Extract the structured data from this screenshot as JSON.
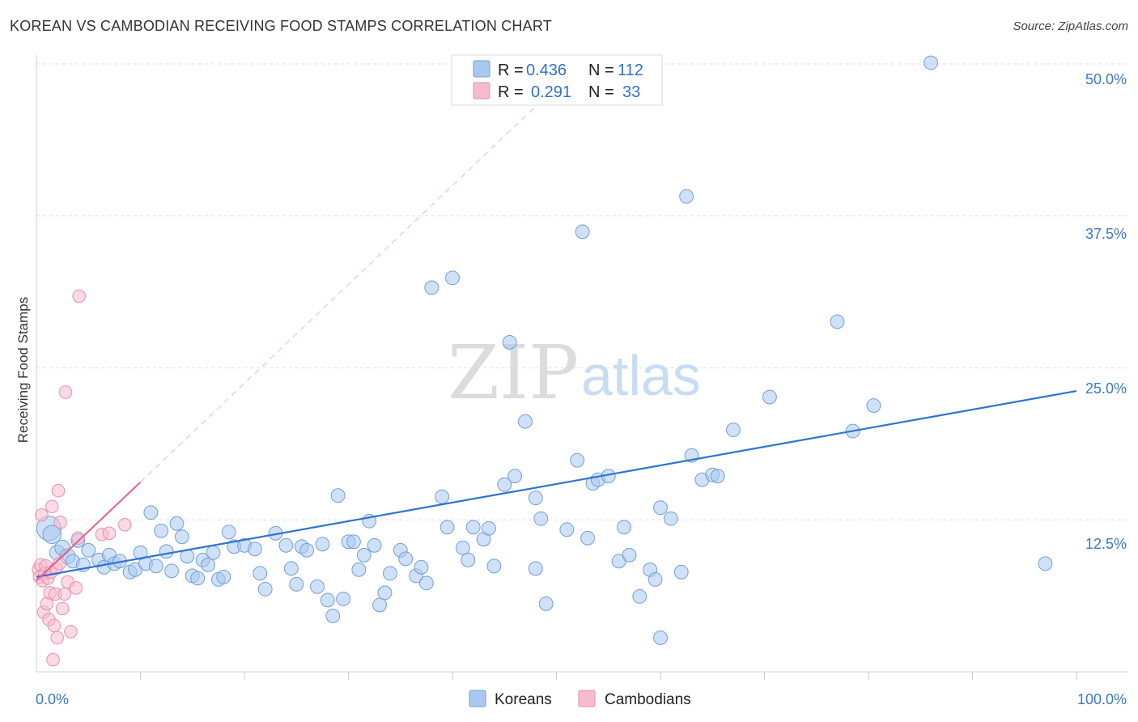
{
  "title": "KOREAN VS CAMBODIAN RECEIVING FOOD STAMPS CORRELATION CHART",
  "source": "Source: ZipAtlas.com",
  "watermark": {
    "zip": "ZIP",
    "atlas": "atlas"
  },
  "colors": {
    "korean_fill": "#a9c8f0",
    "korean_stroke": "#6f9fdc",
    "korean_line": "#2e74d0",
    "cambodian_fill": "#f6bccd",
    "cambodian_stroke": "#ea8fa9",
    "cambodian_line": "#e85f8a",
    "grid": "#dedede",
    "tick_text": "#3a78c9"
  },
  "legend": {
    "rows": [
      {
        "r_label": "R =",
        "r_value": "0.436",
        "n_label": "N =",
        "n_value": "112"
      },
      {
        "r_label": "R =",
        "r_value": "0.291",
        "n_label": "N =",
        "n_value": "33"
      }
    ]
  },
  "bottom_legend": {
    "korean": "Koreans",
    "cambodian": "Cambodians"
  },
  "chart_data": {
    "type": "scatter",
    "title": "KOREAN VS CAMBODIAN RECEIVING FOOD STAMPS CORRELATION CHART",
    "xlabel": "",
    "ylabel": "Receiving Food Stamps",
    "xlim": [
      0,
      100
    ],
    "ylim": [
      0,
      52
    ],
    "x_tick_labels": [
      {
        "value": 0,
        "label": "0.0%"
      },
      {
        "value": 100,
        "label": "100.0%"
      }
    ],
    "y_tick_labels": [
      {
        "value": 12.5,
        "label": "12.5%"
      },
      {
        "value": 25,
        "label": "25.0%"
      },
      {
        "value": 37.5,
        "label": "37.5%"
      },
      {
        "value": 50,
        "label": "50.0%"
      }
    ],
    "grid": true,
    "series": [
      {
        "name": "Koreans",
        "r": 0.436,
        "n": 112,
        "trend": {
          "x": [
            0,
            100
          ],
          "y": [
            7.8,
            23.1
          ]
        },
        "points": [
          {
            "x": 1.2,
            "y": 11.8,
            "size": 16
          },
          {
            "x": 1.5,
            "y": 11.3,
            "size": 12
          },
          {
            "x": 2,
            "y": 9.8,
            "size": 10
          },
          {
            "x": 2.5,
            "y": 10.2,
            "size": 10
          },
          {
            "x": 3,
            "y": 9.5,
            "size": 10
          },
          {
            "x": 3.5,
            "y": 9.1,
            "size": 9
          },
          {
            "x": 4,
            "y": 10.8,
            "size": 9
          },
          {
            "x": 4.5,
            "y": 8.8,
            "size": 9
          },
          {
            "x": 5,
            "y": 10,
            "size": 9
          },
          {
            "x": 6,
            "y": 9.2,
            "size": 9
          },
          {
            "x": 6.5,
            "y": 8.6,
            "size": 9
          },
          {
            "x": 7,
            "y": 9.6,
            "size": 9
          },
          {
            "x": 7.5,
            "y": 8.9,
            "size": 9
          },
          {
            "x": 8,
            "y": 9.1,
            "size": 9
          },
          {
            "x": 9,
            "y": 8.2,
            "size": 9
          },
          {
            "x": 9.5,
            "y": 8.4,
            "size": 9
          },
          {
            "x": 10,
            "y": 9.8,
            "size": 9
          },
          {
            "x": 10.5,
            "y": 8.9,
            "size": 9
          },
          {
            "x": 11,
            "y": 13.1,
            "size": 9
          },
          {
            "x": 11.5,
            "y": 8.7,
            "size": 9
          },
          {
            "x": 12,
            "y": 11.6,
            "size": 9
          },
          {
            "x": 12.5,
            "y": 9.9,
            "size": 9
          },
          {
            "x": 13,
            "y": 8.3,
            "size": 9
          },
          {
            "x": 13.5,
            "y": 12.2,
            "size": 9
          },
          {
            "x": 14,
            "y": 11.1,
            "size": 9
          },
          {
            "x": 14.5,
            "y": 9.5,
            "size": 9
          },
          {
            "x": 15,
            "y": 7.9,
            "size": 9
          },
          {
            "x": 15.5,
            "y": 7.7,
            "size": 9
          },
          {
            "x": 16,
            "y": 9.2,
            "size": 9
          },
          {
            "x": 16.5,
            "y": 8.8,
            "size": 9
          },
          {
            "x": 17,
            "y": 9.8,
            "size": 9
          },
          {
            "x": 17.5,
            "y": 7.6,
            "size": 9
          },
          {
            "x": 18,
            "y": 7.8,
            "size": 9
          },
          {
            "x": 18.5,
            "y": 11.5,
            "size": 9
          },
          {
            "x": 19,
            "y": 10.3,
            "size": 9
          },
          {
            "x": 20,
            "y": 10.4,
            "size": 9
          },
          {
            "x": 21,
            "y": 10.1,
            "size": 9
          },
          {
            "x": 21.5,
            "y": 8.1,
            "size": 9
          },
          {
            "x": 22,
            "y": 6.8,
            "size": 9
          },
          {
            "x": 23,
            "y": 11.4,
            "size": 9
          },
          {
            "x": 24,
            "y": 10.4,
            "size": 9
          },
          {
            "x": 24.5,
            "y": 8.5,
            "size": 9
          },
          {
            "x": 25,
            "y": 7.2,
            "size": 9
          },
          {
            "x": 25.5,
            "y": 10.3,
            "size": 9
          },
          {
            "x": 26,
            "y": 10,
            "size": 9
          },
          {
            "x": 27,
            "y": 7,
            "size": 9
          },
          {
            "x": 27.5,
            "y": 10.5,
            "size": 9
          },
          {
            "x": 28,
            "y": 5.9,
            "size": 9
          },
          {
            "x": 28.5,
            "y": 4.6,
            "size": 9
          },
          {
            "x": 29,
            "y": 14.5,
            "size": 9
          },
          {
            "x": 29.5,
            "y": 6,
            "size": 9
          },
          {
            "x": 30,
            "y": 10.7,
            "size": 9
          },
          {
            "x": 30.5,
            "y": 10.7,
            "size": 9
          },
          {
            "x": 31,
            "y": 8.4,
            "size": 9
          },
          {
            "x": 31.5,
            "y": 9.6,
            "size": 9
          },
          {
            "x": 32,
            "y": 12.4,
            "size": 9
          },
          {
            "x": 32.5,
            "y": 10.4,
            "size": 9
          },
          {
            "x": 33,
            "y": 5.5,
            "size": 9
          },
          {
            "x": 33.5,
            "y": 6.5,
            "size": 9
          },
          {
            "x": 34,
            "y": 8.1,
            "size": 9
          },
          {
            "x": 35,
            "y": 10,
            "size": 9
          },
          {
            "x": 35.5,
            "y": 9.3,
            "size": 9
          },
          {
            "x": 36.5,
            "y": 7.9,
            "size": 9
          },
          {
            "x": 37,
            "y": 8.6,
            "size": 9
          },
          {
            "x": 37.5,
            "y": 7.3,
            "size": 9
          },
          {
            "x": 38,
            "y": 31.6,
            "size": 9
          },
          {
            "x": 39,
            "y": 14.4,
            "size": 9
          },
          {
            "x": 39.5,
            "y": 11.9,
            "size": 9
          },
          {
            "x": 40,
            "y": 32.4,
            "size": 9
          },
          {
            "x": 41,
            "y": 10.2,
            "size": 9
          },
          {
            "x": 41.5,
            "y": 9.2,
            "size": 9
          },
          {
            "x": 42,
            "y": 11.9,
            "size": 9
          },
          {
            "x": 43,
            "y": 10.9,
            "size": 9
          },
          {
            "x": 43.5,
            "y": 11.8,
            "size": 9
          },
          {
            "x": 44,
            "y": 8.7,
            "size": 9
          },
          {
            "x": 45,
            "y": 15.4,
            "size": 9
          },
          {
            "x": 45.5,
            "y": 27.1,
            "size": 9
          },
          {
            "x": 46,
            "y": 16.1,
            "size": 9
          },
          {
            "x": 47,
            "y": 20.6,
            "size": 9
          },
          {
            "x": 48,
            "y": 8.5,
            "size": 9
          },
          {
            "x": 48.5,
            "y": 12.6,
            "size": 9
          },
          {
            "x": 49,
            "y": 5.6,
            "size": 9
          },
          {
            "x": 51,
            "y": 11.7,
            "size": 9
          },
          {
            "x": 52,
            "y": 17.4,
            "size": 9
          },
          {
            "x": 52.5,
            "y": 36.2,
            "size": 9
          },
          {
            "x": 53,
            "y": 11,
            "size": 9
          },
          {
            "x": 53.5,
            "y": 15.5,
            "size": 9
          },
          {
            "x": 54,
            "y": 15.8,
            "size": 9
          },
          {
            "x": 55,
            "y": 16.1,
            "size": 9
          },
          {
            "x": 56,
            "y": 9.1,
            "size": 9
          },
          {
            "x": 56.5,
            "y": 11.9,
            "size": 9
          },
          {
            "x": 57,
            "y": 9.6,
            "size": 9
          },
          {
            "x": 58,
            "y": 6.2,
            "size": 9
          },
          {
            "x": 59,
            "y": 8.4,
            "size": 9
          },
          {
            "x": 59.5,
            "y": 7.6,
            "size": 9
          },
          {
            "x": 60,
            "y": 13.5,
            "size": 9
          },
          {
            "x": 60,
            "y": 2.8,
            "size": 9
          },
          {
            "x": 61,
            "y": 12.6,
            "size": 9
          },
          {
            "x": 62,
            "y": 8.2,
            "size": 9
          },
          {
            "x": 62.5,
            "y": 39.1,
            "size": 9
          },
          {
            "x": 63,
            "y": 17.8,
            "size": 9
          },
          {
            "x": 64,
            "y": 15.8,
            "size": 9
          },
          {
            "x": 65,
            "y": 16.2,
            "size": 9
          },
          {
            "x": 65.5,
            "y": 16.1,
            "size": 9
          },
          {
            "x": 67,
            "y": 19.9,
            "size": 9
          },
          {
            "x": 70.5,
            "y": 22.6,
            "size": 9
          },
          {
            "x": 77,
            "y": 28.8,
            "size": 9
          },
          {
            "x": 78.5,
            "y": 19.8,
            "size": 9
          },
          {
            "x": 80.5,
            "y": 21.9,
            "size": 9
          },
          {
            "x": 86,
            "y": 50.1,
            "size": 9
          },
          {
            "x": 97,
            "y": 8.9,
            "size": 9
          },
          {
            "x": 48,
            "y": 14.3,
            "size": 9
          }
        ]
      },
      {
        "name": "Cambodians",
        "r": 0.291,
        "n": 33,
        "trend": {
          "x": [
            0,
            10
          ],
          "y": [
            7.5,
            15.6
          ],
          "extended": {
            "x": [
              10,
              48
            ],
            "y": [
              15.6,
              46.5
            ]
          }
        },
        "points": [
          {
            "x": 0.2,
            "y": 8.4,
            "size": 9
          },
          {
            "x": 0.3,
            "y": 7.8,
            "size": 9
          },
          {
            "x": 0.4,
            "y": 8.8,
            "size": 9
          },
          {
            "x": 0.5,
            "y": 12.9,
            "size": 9
          },
          {
            "x": 0.6,
            "y": 7.5,
            "size": 9
          },
          {
            "x": 0.7,
            "y": 4.9,
            "size": 9
          },
          {
            "x": 0.8,
            "y": 8.1,
            "size": 9
          },
          {
            "x": 0.9,
            "y": 8.7,
            "size": 9
          },
          {
            "x": 1,
            "y": 5.6,
            "size": 9
          },
          {
            "x": 1.1,
            "y": 7.7,
            "size": 9
          },
          {
            "x": 1.2,
            "y": 4.3,
            "size": 9
          },
          {
            "x": 1.3,
            "y": 6.5,
            "size": 9
          },
          {
            "x": 1.4,
            "y": 8.2,
            "size": 9
          },
          {
            "x": 1.5,
            "y": 13.6,
            "size": 9
          },
          {
            "x": 1.6,
            "y": 1,
            "size": 9
          },
          {
            "x": 1.7,
            "y": 3.8,
            "size": 9
          },
          {
            "x": 1.8,
            "y": 6.4,
            "size": 9
          },
          {
            "x": 1.9,
            "y": 8.5,
            "size": 9
          },
          {
            "x": 2,
            "y": 2.8,
            "size": 9
          },
          {
            "x": 2.1,
            "y": 14.9,
            "size": 9
          },
          {
            "x": 2.2,
            "y": 8.9,
            "size": 9
          },
          {
            "x": 2.3,
            "y": 12.3,
            "size": 9
          },
          {
            "x": 2.5,
            "y": 5.2,
            "size": 9
          },
          {
            "x": 2.7,
            "y": 6.4,
            "size": 9
          },
          {
            "x": 2.8,
            "y": 23,
            "size": 9
          },
          {
            "x": 3,
            "y": 7.4,
            "size": 9
          },
          {
            "x": 3.3,
            "y": 3.3,
            "size": 9
          },
          {
            "x": 3.8,
            "y": 6.9,
            "size": 9
          },
          {
            "x": 4,
            "y": 11,
            "size": 9
          },
          {
            "x": 4.1,
            "y": 30.9,
            "size": 9
          },
          {
            "x": 6.3,
            "y": 11.3,
            "size": 9
          },
          {
            "x": 7,
            "y": 11.4,
            "size": 9
          },
          {
            "x": 8.5,
            "y": 12.1,
            "size": 9
          }
        ]
      }
    ]
  }
}
